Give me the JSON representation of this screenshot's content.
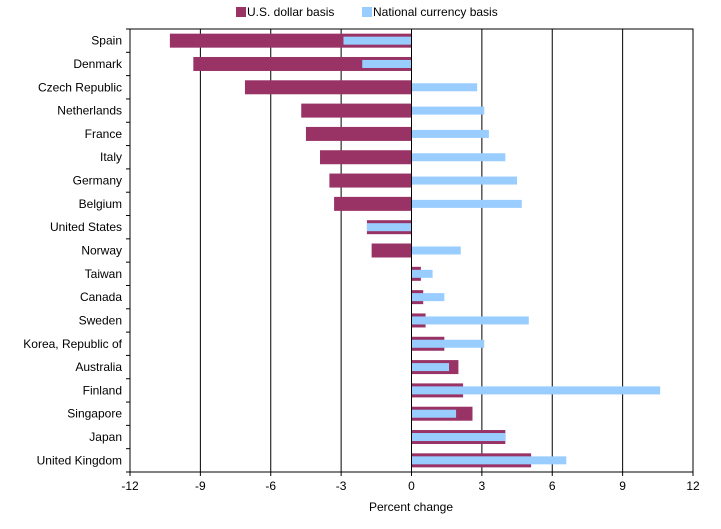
{
  "chart_data": {
    "type": "bar",
    "orientation": "horizontal",
    "categories": [
      "Spain",
      "Denmark",
      "Czech Republic",
      "Netherlands",
      "France",
      "Italy",
      "Germany",
      "Belgium",
      "United States",
      "Norway",
      "Taiwan",
      "Canada",
      "Sweden",
      "Korea, Republic of",
      "Australia",
      "Finland",
      "Singapore",
      "Japan",
      "United Kingdom"
    ],
    "series": [
      {
        "name": "U.S. dollar basis",
        "color": "#993366",
        "values": [
          -10.3,
          -9.3,
          -7.1,
          -4.7,
          -4.5,
          -3.9,
          -3.5,
          -3.3,
          -1.9,
          -1.7,
          0.4,
          0.5,
          0.6,
          1.4,
          2.0,
          2.2,
          2.6,
          4.0,
          5.1
        ]
      },
      {
        "name": "National currency basis",
        "color": "#99ccff",
        "values": [
          -2.9,
          -2.1,
          2.8,
          3.1,
          3.3,
          4.0,
          4.5,
          4.7,
          -1.9,
          2.1,
          0.9,
          1.4,
          5.0,
          3.1,
          1.6,
          10.6,
          1.9,
          4.0,
          6.6
        ]
      }
    ],
    "xlim": [
      -12,
      12
    ],
    "xticks": [
      "-12",
      "-9",
      "-6",
      "-3",
      "0",
      "3",
      "6",
      "9",
      "12"
    ],
    "xlabel": "Percent change",
    "grid": "vertical",
    "legend_position": "top"
  }
}
